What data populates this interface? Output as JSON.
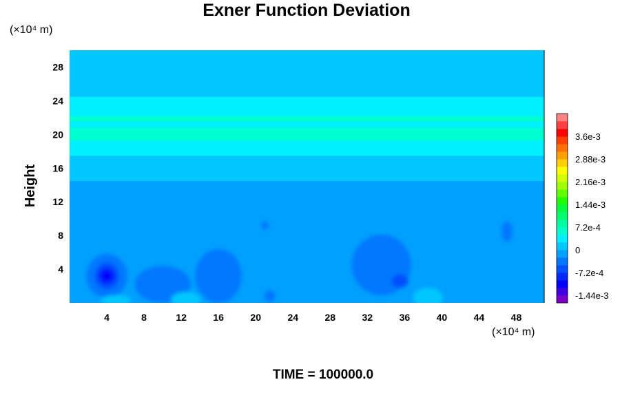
{
  "chart_data": {
    "type": "heatmap",
    "title": "Exner Function Deviation",
    "ylabel": "Height",
    "xlabel": "",
    "x_unit": "(×10⁴ m)",
    "y_unit": "(×10⁴ m)",
    "xlim": [
      0,
      51
    ],
    "ylim": [
      0,
      30
    ],
    "x_ticks": [
      4,
      8,
      12,
      16,
      20,
      24,
      28,
      32,
      36,
      40,
      44,
      48
    ],
    "y_ticks": [
      4,
      8,
      12,
      16,
      20,
      24,
      28
    ],
    "colorbar": {
      "range": [
        -0.00168,
        0.00432
      ],
      "ticks": [
        {
          "value": 0.0036,
          "label": "3.6e-3"
        },
        {
          "value": 0.00288,
          "label": "2.88e-3"
        },
        {
          "value": 0.00216,
          "label": "2.16e-3"
        },
        {
          "value": 0.00144,
          "label": "1.44e-3"
        },
        {
          "value": 0.00072,
          "label": "7.2e-4"
        },
        {
          "value": 0,
          "label": "0"
        },
        {
          "value": -0.00072,
          "label": "-7.2e-4"
        },
        {
          "value": -0.00144,
          "label": "-1.44e-3"
        }
      ],
      "colors": [
        "#7b00c8",
        "#4000e0",
        "#0000ff",
        "#0028ff",
        "#0050ff",
        "#0078ff",
        "#00a0ff",
        "#00c8ff",
        "#00f0ff",
        "#00ffd0",
        "#00ffa0",
        "#00ff70",
        "#00ff40",
        "#20ff00",
        "#60ff00",
        "#a0ff00",
        "#d0ff00",
        "#ffff00",
        "#ffd000",
        "#ffa000",
        "#ff7000",
        "#ff4000",
        "#ff0000",
        "#ff4040",
        "#ff8080"
      ]
    },
    "bands": [
      {
        "y": [
          0,
          10.5
        ],
        "value": -0.00024
      },
      {
        "y": [
          10.5,
          14.5
        ],
        "value": -0.00012
      },
      {
        "y": [
          14.5,
          17.5
        ],
        "value": 8e-05
      },
      {
        "y": [
          17.5,
          19.3
        ],
        "value": 0.00034
      },
      {
        "y": [
          19.3,
          20.8
        ],
        "value": 0.00052
      },
      {
        "y": [
          20.8,
          21.6
        ],
        "value": 0.00042
      },
      {
        "y": [
          21.6,
          22.2
        ],
        "value": 0.00055
      },
      {
        "y": [
          22.2,
          24.5
        ],
        "value": 0.00034
      },
      {
        "y": [
          24.5,
          26.5
        ],
        "value": 0.00018
      },
      {
        "y": [
          26.5,
          30
        ],
        "value": 6e-05
      }
    ],
    "anomalies": [
      {
        "x": 4,
        "y": 3.2,
        "rx": 2.2,
        "ry": 2.6,
        "value": -0.00036
      },
      {
        "x": 4,
        "y": 3.2,
        "rx": 1.3,
        "ry": 1.6,
        "value": -0.0006
      },
      {
        "x": 4,
        "y": 3.2,
        "rx": 0.9,
        "ry": 1.0,
        "value": -0.00084
      },
      {
        "x": 4,
        "y": 3.2,
        "rx": 0.5,
        "ry": 0.6,
        "value": -0.00108
      },
      {
        "x": 10,
        "y": 2.2,
        "rx": 3.0,
        "ry": 2.2,
        "value": -0.00036
      },
      {
        "x": 10,
        "y": 2.0,
        "rx": 1.6,
        "ry": 1.2,
        "value": -0.00048
      },
      {
        "x": 16,
        "y": 3.2,
        "rx": 2.5,
        "ry": 3.2,
        "value": -0.00036
      },
      {
        "x": 15.8,
        "y": 2.5,
        "rx": 1.0,
        "ry": 1.0,
        "value": -0.00048
      },
      {
        "x": 33.5,
        "y": 4.5,
        "rx": 3.2,
        "ry": 3.6,
        "value": -0.00036
      },
      {
        "x": 33.3,
        "y": 4.1,
        "rx": 1.9,
        "ry": 2.2,
        "value": -0.00048
      },
      {
        "x": 35.5,
        "y": 2.6,
        "rx": 0.9,
        "ry": 0.8,
        "value": -0.0006
      },
      {
        "x": 12.5,
        "y": 0.4,
        "rx": 1.6,
        "ry": 0.9,
        "value": 0.0001
      },
      {
        "x": 5,
        "y": 0.3,
        "rx": 1.6,
        "ry": 0.6,
        "value": 0.0001
      },
      {
        "x": 38.5,
        "y": 0.6,
        "rx": 1.6,
        "ry": 1.2,
        "value": 0.0001
      },
      {
        "x": 21,
        "y": 9.2,
        "rx": 0.4,
        "ry": 0.5,
        "value": -0.00036
      },
      {
        "x": 47,
        "y": 8.5,
        "rx": 0.6,
        "ry": 1.2,
        "value": -0.00036
      },
      {
        "x": 21.5,
        "y": 0.8,
        "rx": 0.6,
        "ry": 0.7,
        "value": -0.00048
      }
    ],
    "grid": false,
    "legend": "colorbar-right"
  },
  "footer": {
    "time_label": "TIME = 100000.0"
  }
}
